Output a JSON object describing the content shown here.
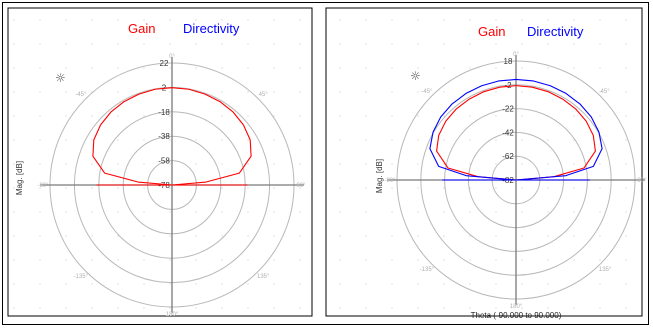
{
  "colors": {
    "gain": "#ff0000",
    "directivity": "#0000ff",
    "grid": "#b8b8b8",
    "axis": "#7a7a7a"
  },
  "chart_data": [
    {
      "type": "polar-line",
      "legend": [
        "Gain"
      ],
      "ylabel": "Mag. [dB]",
      "xlabel": "",
      "radial_ticks": [
        "22",
        "2",
        "-18",
        "-38",
        "-58",
        "-78"
      ],
      "radial_range": [
        -78,
        22
      ],
      "angle_labels": [
        "0°",
        "45°",
        "90°",
        "135°",
        "180°",
        "-135°",
        "-90°",
        "-45°"
      ],
      "grid": true,
      "series": [
        {
          "name": "Gain",
          "color": "#ff0000",
          "theta_deg": [
            -90,
            -85,
            -80,
            -70,
            -60,
            -50,
            -40,
            -30,
            -20,
            -10,
            0,
            10,
            20,
            30,
            40,
            50,
            60,
            70,
            80,
            85,
            90
          ],
          "r_db": [
            -78,
            -50,
            -22,
            -9,
            -4,
            -1.5,
            0,
            0.8,
            1.3,
            1.7,
            1.8,
            1.7,
            1.3,
            0.8,
            0,
            -1.5,
            -4,
            -9,
            -22,
            -50,
            -78
          ]
        }
      ]
    },
    {
      "type": "polar-line",
      "legend": [
        "Gain",
        "Directivity"
      ],
      "ylabel": "Mag. [dB]",
      "xlabel": "Theta (-90.000 to 90.000)",
      "radial_ticks": [
        "18",
        "-2",
        "-22",
        "-42",
        "-62",
        "-82"
      ],
      "radial_range": [
        -82,
        18
      ],
      "angle_labels": [
        "0°",
        "45°",
        "90°",
        "135°",
        "180°",
        "-135°",
        "-90°",
        "-45°"
      ],
      "grid": true,
      "series": [
        {
          "name": "Gain",
          "color": "#ff0000",
          "theta_deg": [
            -90,
            -85,
            -80,
            -70,
            -60,
            -50,
            -40,
            -30,
            -20,
            -10,
            0,
            10,
            20,
            30,
            40,
            50,
            60,
            70,
            80,
            85,
            90
          ],
          "r_db": [
            -82,
            -50,
            -24,
            -11,
            -7,
            -5,
            -4,
            -3.5,
            -3,
            -2.8,
            -2.7,
            -2.8,
            -3,
            -3.5,
            -4,
            -5,
            -7,
            -11,
            -24,
            -50,
            -82
          ]
        },
        {
          "name": "Directivity",
          "color": "#0000ff",
          "theta_deg": [
            -90,
            -85,
            -80,
            -70,
            -60,
            -50,
            -40,
            -30,
            -20,
            -10,
            0,
            10,
            20,
            30,
            40,
            50,
            60,
            70,
            80,
            85,
            90
          ],
          "r_db": [
            -82,
            -40,
            -16,
            -5,
            -1.5,
            0.5,
            1.5,
            2,
            2.3,
            2.5,
            2.5,
            2.5,
            2.3,
            2,
            1.5,
            0.5,
            -1.5,
            -5,
            -16,
            -40,
            -82
          ]
        }
      ]
    }
  ]
}
